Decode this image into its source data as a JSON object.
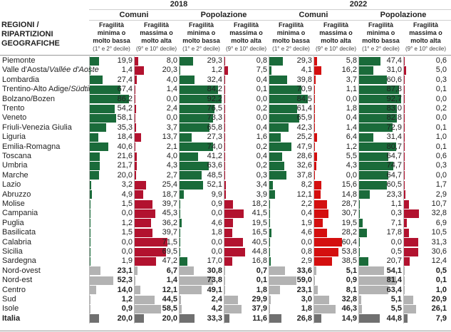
{
  "chart_data": {
    "type": "table",
    "title": "",
    "row_header": "REGIONI / RIPARTIZIONI GEOGRAFICHE",
    "years": [
      "2018",
      "2022"
    ],
    "groups": [
      "Comuni",
      "Popolazione",
      "Comuni",
      "Popolazione"
    ],
    "columns": [
      {
        "year": "2018",
        "group": "Comuni",
        "title": "Fragilità minima o molto bassa",
        "sub": "(1° e 2° decile)",
        "kind": "low"
      },
      {
        "year": "2018",
        "group": "Comuni",
        "title": "Fragilità massima o molto alta",
        "sub": "(9° e 10° decile)",
        "kind": "high"
      },
      {
        "year": "2018",
        "group": "Popolazione",
        "title": "Fragilità minima o molto bassa",
        "sub": "(1° e 2° decile)",
        "kind": "low"
      },
      {
        "year": "2018",
        "group": "Popolazione",
        "title": "Fragilità massima o molto alta",
        "sub": "(9° e 10° decile)",
        "kind": "high"
      },
      {
        "year": "2022",
        "group": "Comuni",
        "title": "Fragilità minima o molto bassa",
        "sub": "(1° e 2° decile)",
        "kind": "low"
      },
      {
        "year": "2022",
        "group": "Comuni",
        "title": "Fragilità massima o molto alta",
        "sub": "(9° e 10° decile)",
        "kind": "high"
      },
      {
        "year": "2022",
        "group": "Popolazione",
        "title": "Fragilità minima o molto bassa",
        "sub": "(1° e 2° decile)",
        "kind": "low"
      },
      {
        "year": "2022",
        "group": "Popolazione",
        "title": "Fragilità massima o molto alta",
        "sub": "(9° e 10° decile)",
        "kind": "high"
      }
    ],
    "rows": [
      {
        "label": "Piemonte",
        "type": "region",
        "values": [
          "19,9",
          "8,0",
          "29,3",
          "0,8",
          "29,3",
          "5,8",
          "47,4",
          "0,6"
        ]
      },
      {
        "label": "Valle d'Aosta/",
        "label_italic": "Vallée d'Aoste",
        "type": "region",
        "values": [
          "1,4",
          "20,3",
          "1,2",
          "7,5",
          "4,1",
          "16,2",
          "31,0",
          "5,0"
        ]
      },
      {
        "label": "Lombardia",
        "type": "region",
        "values": [
          "27,4",
          "4,0",
          "32,4",
          "0,4",
          "39,8",
          "3,7",
          "60,6",
          "0,3"
        ]
      },
      {
        "label": "Trentino-Alto Adige/",
        "label_italic": "Südtirol",
        "type": "region",
        "values": [
          "67,4",
          "1,4",
          "84,2",
          "0,1",
          "70,9",
          "1,1",
          "87,8",
          "0,1"
        ]
      },
      {
        "label": "Bolzano/Bozen",
        "type": "region",
        "values": [
          "86,2",
          "0,0",
          "92,2",
          "0,0",
          "84,5",
          "0,0",
          "92,7",
          "0,0"
        ]
      },
      {
        "label": "Trento",
        "type": "region",
        "values": [
          "54,2",
          "2,4",
          "76,5",
          "0,2",
          "61,4",
          "1,8",
          "83,0",
          "0,2"
        ]
      },
      {
        "label": "Veneto",
        "type": "region",
        "values": [
          "58,1",
          "0,0",
          "73,3",
          "0,0",
          "65,9",
          "0,4",
          "82,8",
          "0,0"
        ]
      },
      {
        "label": "Friuli-Venezia Giulia",
        "type": "region",
        "values": [
          "35,3",
          "3,7",
          "65,8",
          "0,4",
          "42,3",
          "1,4",
          "72,9",
          "0,1"
        ]
      },
      {
        "label": "Liguria",
        "type": "region",
        "values": [
          "18,4",
          "13,7",
          "27,3",
          "1,6",
          "25,2",
          "6,4",
          "31,4",
          "1,0"
        ]
      },
      {
        "label": "Emilia-Romagna",
        "type": "region",
        "values": [
          "40,6",
          "2,1",
          "74,0",
          "0,2",
          "47,9",
          "1,2",
          "80,7",
          "0,1"
        ]
      },
      {
        "label": "Toscana",
        "type": "region",
        "values": [
          "21,6",
          "4,0",
          "41,2",
          "0,4",
          "28,6",
          "5,5",
          "64,7",
          "0,6"
        ]
      },
      {
        "label": "Umbria",
        "type": "region",
        "values": [
          "21,7",
          "4,3",
          "63,6",
          "0,2",
          "32,6",
          "4,3",
          "74,7",
          "0,3"
        ]
      },
      {
        "label": "Marche",
        "type": "region",
        "values": [
          "20,0",
          "2,7",
          "48,5",
          "0,3",
          "37,8",
          "0,0",
          "64,7",
          "0,0"
        ]
      },
      {
        "label": "Lazio",
        "type": "region",
        "values": [
          "3,2",
          "25,4",
          "52,1",
          "3,4",
          "8,2",
          "15,6",
          "60,5",
          "1,7"
        ]
      },
      {
        "label": "Abruzzo",
        "type": "region",
        "values": [
          "4,9",
          "18,7",
          "9,9",
          "3,9",
          "12,1",
          "14,8",
          "23,3",
          "2,9"
        ]
      },
      {
        "label": "Molise",
        "type": "region",
        "values": [
          "1,5",
          "39,7",
          "0,9",
          "18,2",
          "2,2",
          "28,7",
          "1,1",
          "10,7"
        ]
      },
      {
        "label": "Campania",
        "type": "region",
        "values": [
          "0,0",
          "45,3",
          "0,0",
          "41,5",
          "0,4",
          "30,7",
          "0,3",
          "32,8"
        ]
      },
      {
        "label": "Puglia",
        "type": "region",
        "values": [
          "1,2",
          "36,2",
          "4,6",
          "19,5",
          "1,9",
          "19,5",
          "7,1",
          "6,9"
        ]
      },
      {
        "label": "Basilicata",
        "type": "region",
        "values": [
          "1,5",
          "39,7",
          "1,8",
          "16,5",
          "4,6",
          "28,2",
          "17,8",
          "10,5"
        ]
      },
      {
        "label": "Calabria",
        "type": "region",
        "values": [
          "0,0",
          "71,5",
          "0,0",
          "40,5",
          "0,0",
          "60,4",
          "0,0",
          "31,3"
        ]
      },
      {
        "label": "Sicilia",
        "type": "region",
        "values": [
          "0,0",
          "69,5",
          "0,0",
          "44,8",
          "0,8",
          "53,8",
          "0,5",
          "30,6"
        ]
      },
      {
        "label": "Sardegna",
        "type": "region",
        "values": [
          "1,9",
          "47,2",
          "17,0",
          "16,8",
          "2,9",
          "38,5",
          "20,7",
          "12,4"
        ]
      },
      {
        "label": "Nord-ovest",
        "type": "area",
        "values": [
          "23,1",
          "6,7",
          "30,8",
          "0,7",
          "33,6",
          "5,1",
          "54,1",
          "0,5"
        ]
      },
      {
        "label": "Nord-est",
        "type": "area",
        "values": [
          "52,3",
          "1,4",
          "73,8",
          "0,1",
          "59,0",
          "0,9",
          "81,4",
          "0,1"
        ]
      },
      {
        "label": "Centro",
        "type": "area",
        "values": [
          "14,0",
          "12,1",
          "49,1",
          "1,8",
          "23,1",
          "8,1",
          "63,4",
          "1,0"
        ]
      },
      {
        "label": "Sud",
        "type": "area",
        "values": [
          "1,2",
          "44,5",
          "2,4",
          "29,9",
          "3,0",
          "32,8",
          "5,1",
          "20,9"
        ]
      },
      {
        "label": "Isole",
        "type": "area",
        "values": [
          "0,9",
          "58,5",
          "4,2",
          "37,9",
          "1,8",
          "46,3",
          "5,5",
          "26,1"
        ]
      },
      {
        "label": "Italia",
        "type": "total",
        "values": [
          "20,0",
          "20,0",
          "33,3",
          "11,6",
          "26,8",
          "14,9",
          "44,8",
          "7,9"
        ]
      }
    ],
    "value_range": [
      0,
      100
    ],
    "units": "%"
  },
  "colors": {
    "low": "#1a6b3a",
    "high_2018": "#b2122f",
    "high_2022": "#d40f0f",
    "area": "#b3b3b3",
    "total": "#707070"
  }
}
